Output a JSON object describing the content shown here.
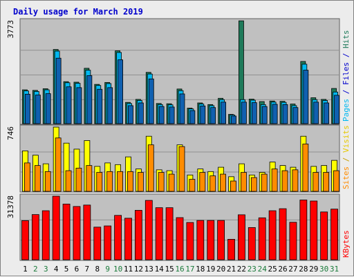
{
  "title": "Daily usage for March 2019",
  "colors": {
    "panel_bg": "#c0c0c0",
    "grid": "#909090",
    "hits": "#1f7a5a",
    "files": "#00b8f0",
    "pages": "#1060b0",
    "visits": "#ff8c00",
    "sites": "#ffff00",
    "kbytes": "#ff0000",
    "weekday_label": "#000000",
    "weekend_label": "#1a7a3a"
  },
  "chart_data": [
    {
      "type": "bar",
      "panel": "top",
      "ymax_label": "3773",
      "legend": [
        "Pages",
        "Files",
        "Hits"
      ],
      "ymax": 3773,
      "series": [
        {
          "name": "Hits",
          "values": [
            1240,
            1220,
            1280,
            2720,
            1540,
            1520,
            2030,
            1440,
            1510,
            2670,
            780,
            890,
            1880,
            740,
            730,
            1270,
            570,
            760,
            700,
            930,
            340,
            3770,
            900,
            810,
            830,
            820,
            720,
            2280,
            950,
            890,
            1290
          ]
        },
        {
          "name": "Files",
          "values": [
            1200,
            1180,
            1240,
            2660,
            1500,
            1480,
            1960,
            1400,
            1470,
            2610,
            740,
            850,
            1820,
            700,
            690,
            1210,
            540,
            720,
            660,
            880,
            320,
            880,
            860,
            700,
            790,
            780,
            660,
            2180,
            880,
            850,
            1160
          ]
        },
        {
          "name": "Pages",
          "values": [
            1080,
            1050,
            1100,
            2400,
            1350,
            1320,
            1760,
            1260,
            1320,
            2340,
            660,
            760,
            1640,
            630,
            610,
            1090,
            480,
            650,
            590,
            790,
            280,
            790,
            770,
            630,
            710,
            700,
            590,
            1960,
            790,
            760,
            1040
          ]
        }
      ]
    },
    {
      "type": "bar",
      "panel": "middle",
      "ymax_label": "746",
      "legend": [
        "Sites",
        "Visits"
      ],
      "ymax": 746,
      "series": [
        {
          "name": "Sites",
          "values": [
            470,
            420,
            320,
            746,
            560,
            490,
            590,
            290,
            330,
            310,
            400,
            260,
            640,
            250,
            240,
            540,
            190,
            260,
            230,
            280,
            170,
            320,
            190,
            220,
            340,
            300,
            280,
            640,
            290,
            300,
            360
          ]
        },
        {
          "name": "Visits",
          "values": [
            330,
            300,
            230,
            620,
            240,
            270,
            300,
            220,
            230,
            230,
            230,
            220,
            540,
            220,
            200,
            520,
            140,
            220,
            180,
            200,
            120,
            220,
            160,
            200,
            260,
            240,
            250,
            550,
            220,
            220,
            240
          ]
        }
      ]
    },
    {
      "type": "bar",
      "panel": "bottom",
      "ymax_label": "31378",
      "legend": [
        "KBytes"
      ],
      "ymax": 31378,
      "series": [
        {
          "name": "KBytes",
          "values": [
            19300,
            22300,
            24200,
            31378,
            27500,
            26300,
            27000,
            16100,
            16700,
            21900,
            20500,
            24400,
            29300,
            25700,
            25700,
            20800,
            18400,
            19400,
            19400,
            19400,
            10100,
            22200,
            15900,
            20700,
            24200,
            25200,
            18500,
            29500,
            29000,
            23600,
            25000
          ]
        }
      ]
    }
  ],
  "days": [
    "1",
    "2",
    "3",
    "4",
    "5",
    "6",
    "7",
    "8",
    "9",
    "10",
    "11",
    "12",
    "13",
    "14",
    "15",
    "16",
    "17",
    "18",
    "19",
    "20",
    "21",
    "22",
    "23",
    "24",
    "25",
    "26",
    "27",
    "28",
    "29",
    "30",
    "31"
  ],
  "weekend_days": [
    2,
    3,
    9,
    10,
    16,
    17,
    23,
    24,
    30,
    31
  ]
}
